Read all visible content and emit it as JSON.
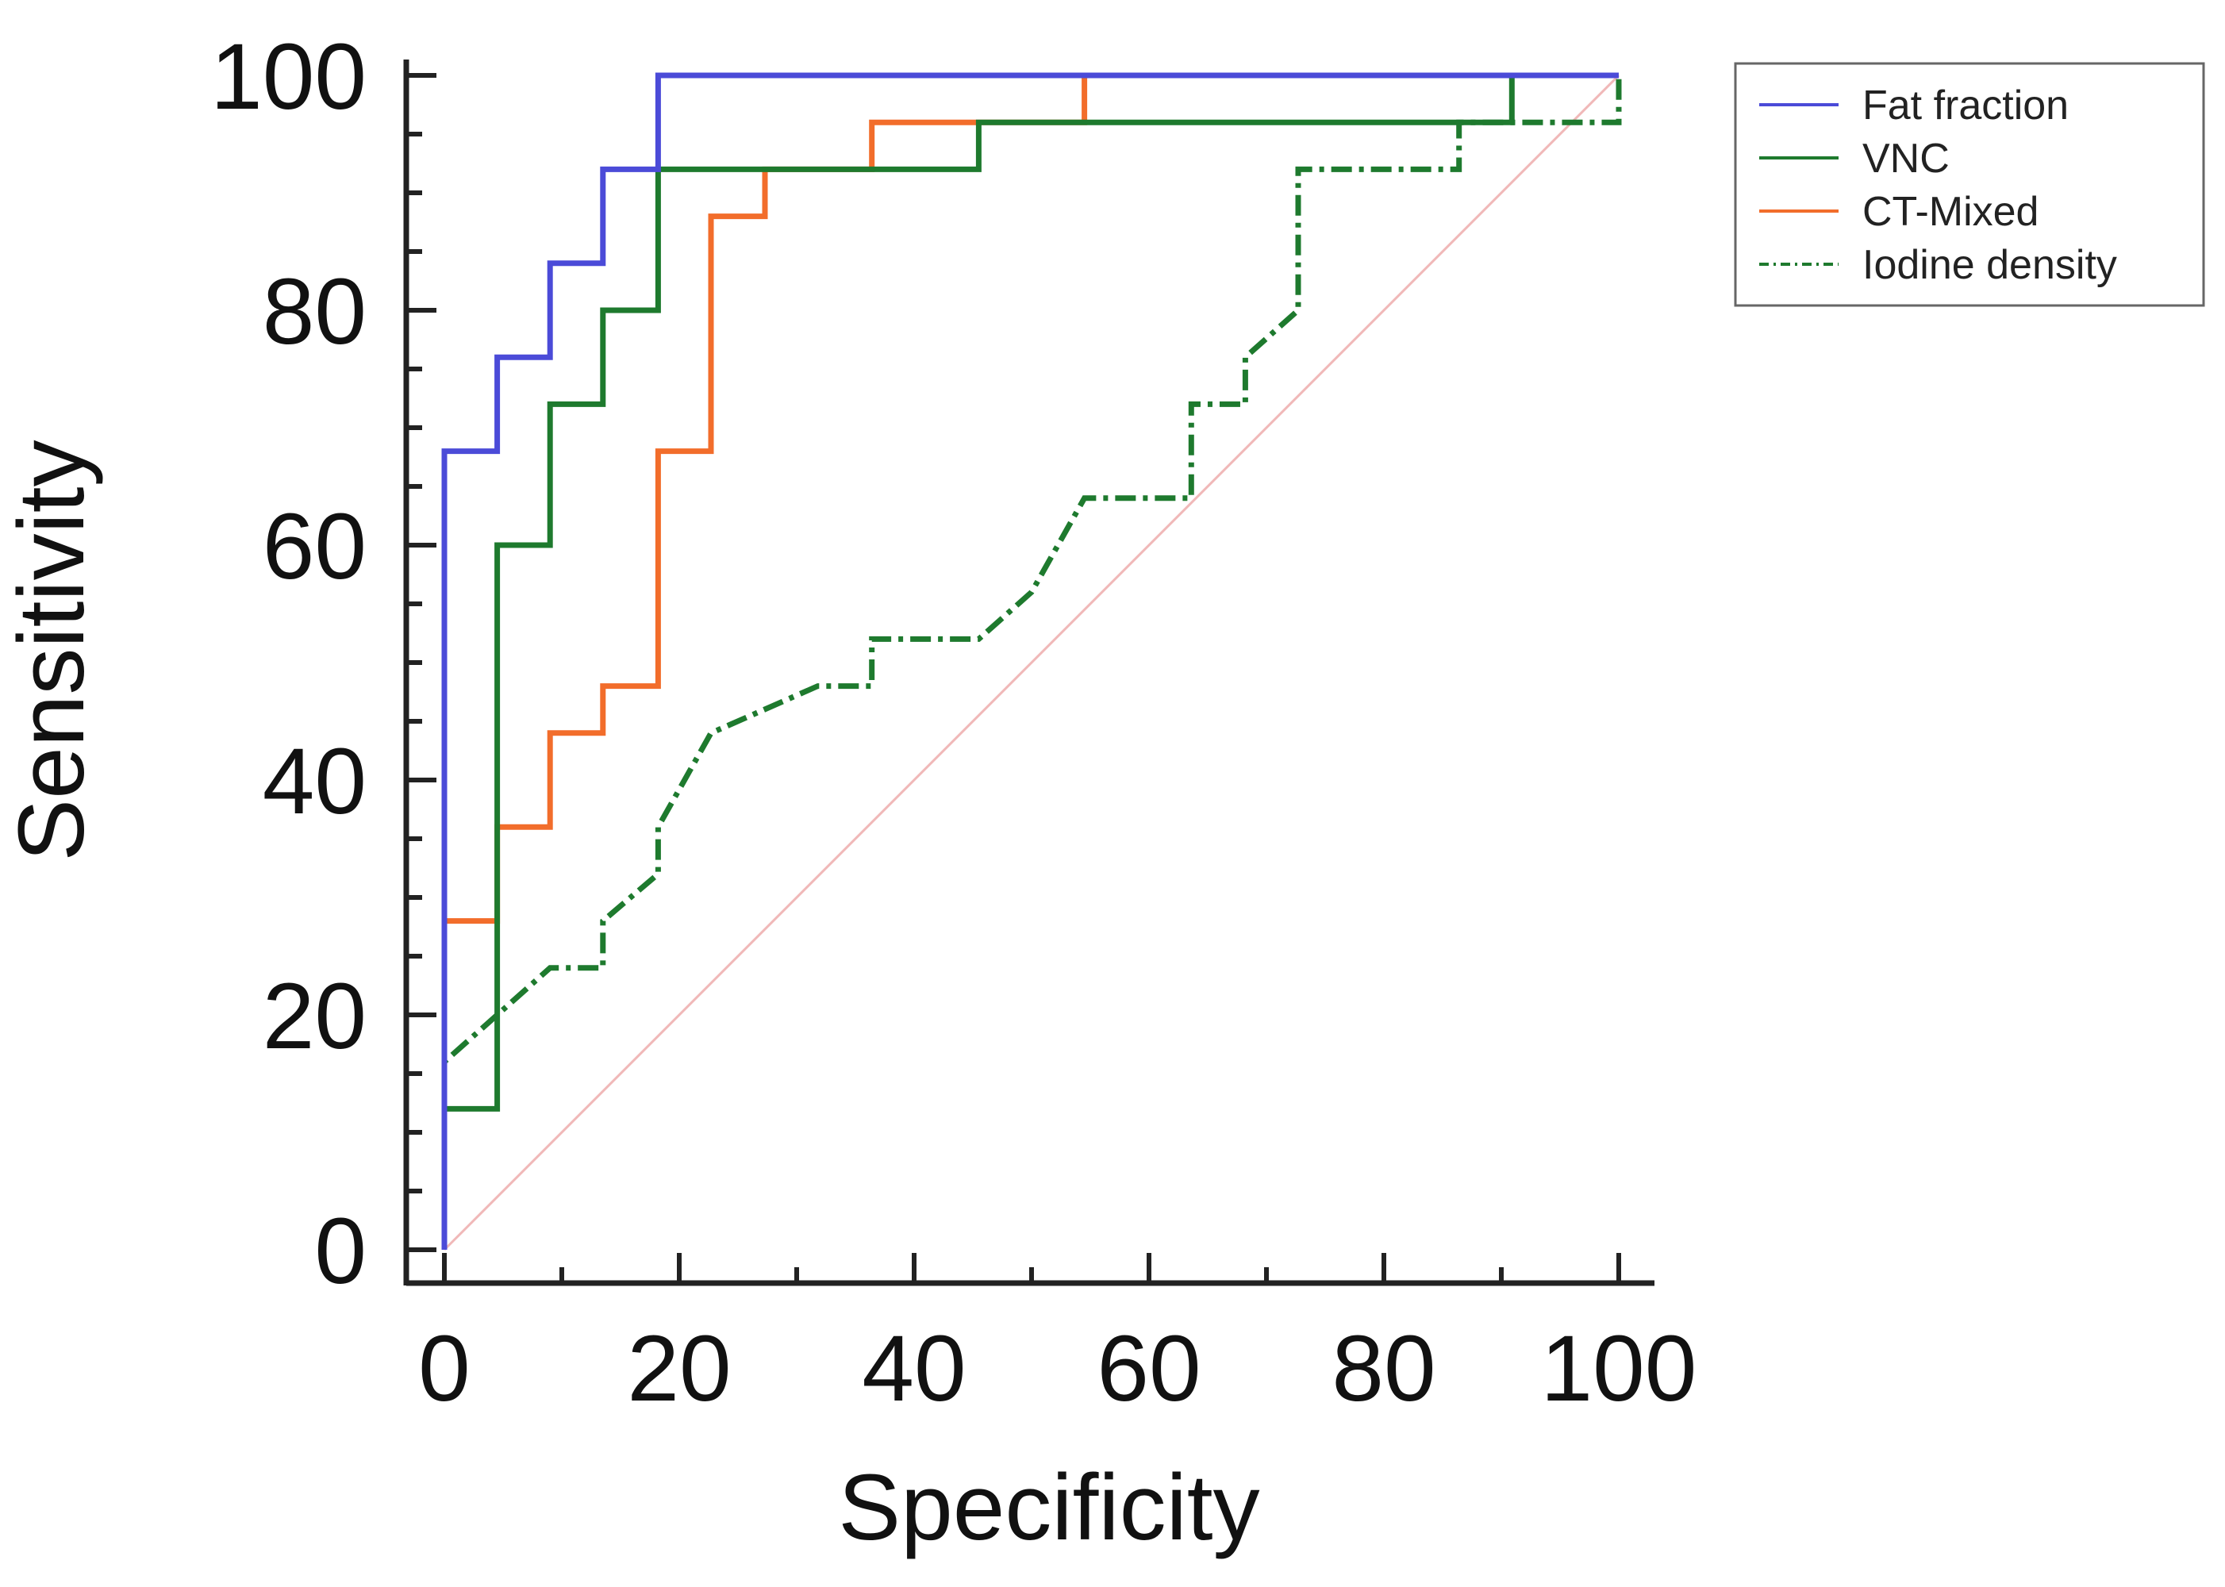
{
  "chart_data": {
    "type": "line",
    "title": "",
    "xlabel": "Specificity",
    "ylabel": "Sensitivity",
    "xlim": [
      0,
      100
    ],
    "ylim": [
      0,
      100
    ],
    "xticks": [
      0,
      20,
      40,
      60,
      80,
      100
    ],
    "yticks": [
      0,
      20,
      40,
      60,
      80,
      100
    ],
    "grid": false,
    "legend_position": "top-right, outside plot",
    "reference_line": {
      "name": "diagonal",
      "x": [
        0,
        100
      ],
      "y": [
        0,
        100
      ],
      "color": "#f0b8b8"
    },
    "series": [
      {
        "name": "Fat fraction",
        "color": "#4b4bd8",
        "style": "solid",
        "x": [
          0,
          0,
          4.5,
          4.5,
          9,
          9,
          13.5,
          13.5,
          18.2,
          18.2,
          54.5,
          100
        ],
        "y": [
          0,
          68,
          68,
          76,
          76,
          84,
          84,
          92,
          92,
          100,
          100,
          100
        ]
      },
      {
        "name": "VNC",
        "color": "#1e7a2e",
        "style": "solid",
        "x": [
          0,
          0,
          4.5,
          4.5,
          9,
          9,
          13.5,
          13.5,
          18.2,
          18.2,
          36.4,
          45.5,
          45.5,
          90.9,
          90.9,
          100
        ],
        "y": [
          0,
          12,
          12,
          60,
          60,
          72,
          72,
          80,
          80,
          92,
          92,
          92,
          96,
          96,
          100,
          100
        ]
      },
      {
        "name": "CT-Mixed",
        "color": "#f26d2b",
        "style": "solid",
        "x": [
          0,
          0,
          4.5,
          4.5,
          9,
          9,
          13.5,
          13.5,
          18.2,
          18.2,
          22.7,
          22.7,
          27.3,
          27.3,
          36.4,
          36.4,
          54.5,
          54.5,
          100
        ],
        "y": [
          0,
          28,
          28,
          36,
          36,
          44,
          44,
          48,
          48,
          68,
          68,
          88,
          88,
          92,
          92,
          96,
          96,
          100,
          100
        ]
      },
      {
        "name": "Iodine density",
        "color": "#1e7a2e",
        "style": "dash-dot",
        "x": [
          0,
          0,
          4.5,
          9,
          13.5,
          13.5,
          18.2,
          18.2,
          22.7,
          31.8,
          36.4,
          36.4,
          45.5,
          50,
          54.5,
          63.6,
          63.6,
          68.2,
          68.2,
          72.7,
          72.7,
          86.4,
          86.4,
          100,
          100
        ],
        "y": [
          0,
          16,
          20,
          24,
          24,
          28,
          32,
          36,
          44,
          48,
          48,
          52,
          52,
          56,
          64,
          64,
          72,
          72,
          76,
          80,
          92,
          92,
          96,
          96,
          100
        ]
      }
    ]
  }
}
